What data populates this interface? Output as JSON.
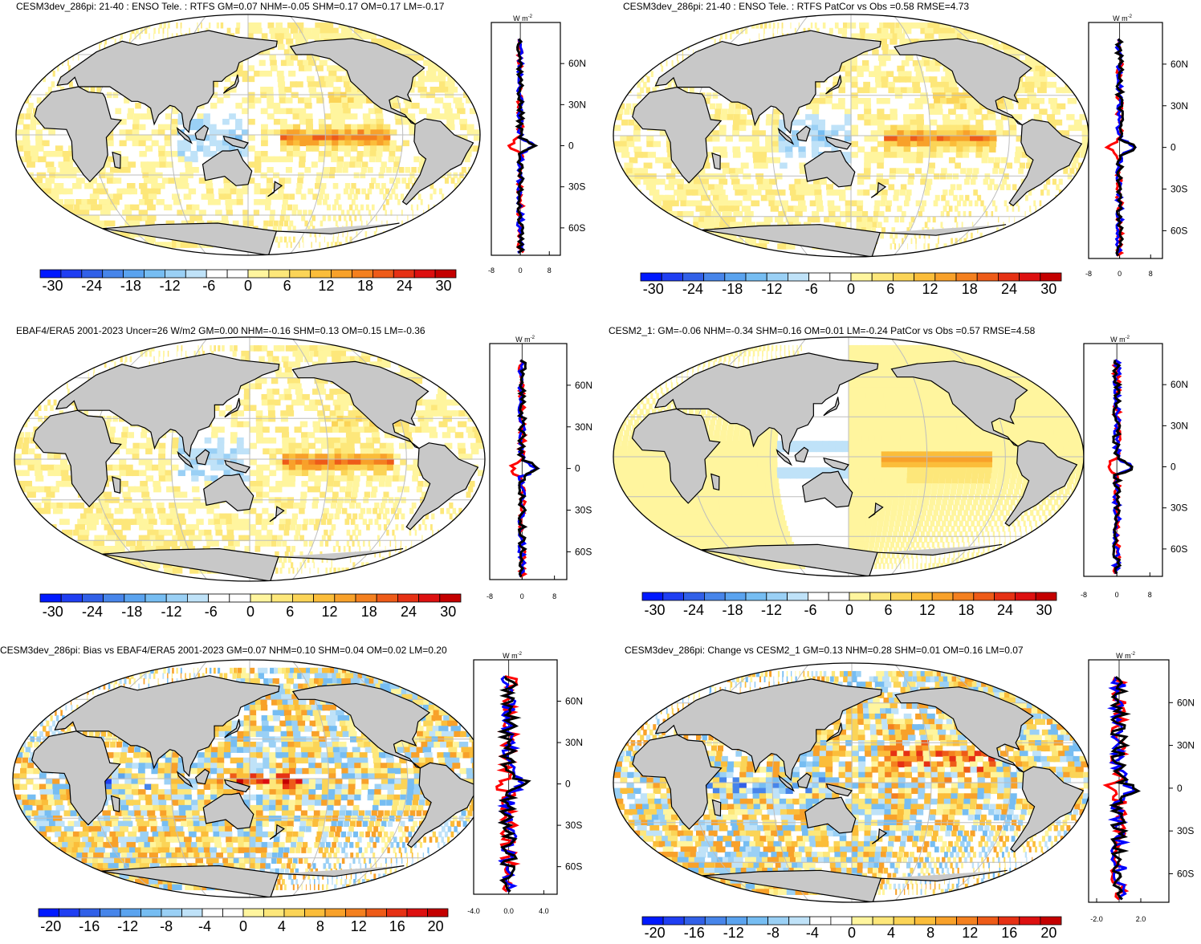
{
  "units": "W m",
  "units_exp": "-2",
  "lat_labels": [
    "60N",
    "30N",
    "0",
    "30S",
    "60S"
  ],
  "lat_values": [
    60,
    30,
    0,
    -30,
    -60
  ],
  "colors": {
    "land": "#c8c8c8",
    "grid": "#bdbdbd",
    "model_line": "#0000ff",
    "obs_line": "#ff0000",
    "ref_line": "#000000",
    "palette": [
      "#0019ff",
      "#1f3ef2",
      "#3160e8",
      "#4785ea",
      "#5aa3ef",
      "#76bdf2",
      "#9ad0f5",
      "#bfe2f8",
      "#ffffff",
      "#ffffff",
      "#fff59e",
      "#fde77a",
      "#fbd457",
      "#fbbd3a",
      "#f8a12a",
      "#f4801f",
      "#ee5b18",
      "#e63114",
      "#dd1010",
      "#c40000"
    ]
  },
  "panels": [
    {
      "title": "CESM3dev_286pi: 21-40 : ENSO Tele. : RTFS GM=0.07 NHM=-0.05 SHM=0.17 OM=0.17 LM=-0.17",
      "colorbar_labels": [
        "-30",
        "-24",
        "-18",
        "-12",
        "-6",
        "0",
        "6",
        "12",
        "18",
        "24",
        "30"
      ],
      "profile_ticks": [
        "-8",
        "0",
        "8"
      ]
    },
    {
      "title": "CESM3dev_286pi: 21-40 : ENSO Tele. : RTFS PatCor vs Obs =0.58 RMSE=4.73",
      "colorbar_labels": [
        "-30",
        "-24",
        "-18",
        "-12",
        "-6",
        "0",
        "6",
        "12",
        "18",
        "24",
        "30"
      ],
      "profile_ticks": [
        "-8",
        "0",
        "8"
      ]
    },
    {
      "title": "EBAF4/ERA5 2001-2023 Uncer=26 W/m2 GM=0.00 NHM=-0.16 SHM=0.13 OM=0.15 LM=-0.36",
      "colorbar_labels": [
        "-30",
        "-24",
        "-18",
        "-12",
        "-6",
        "0",
        "6",
        "12",
        "18",
        "24",
        "30"
      ],
      "profile_ticks": [
        "-8",
        "0",
        "8"
      ]
    },
    {
      "title": "CESM2_1: GM=-0.06 NHM=-0.34 SHM=0.16 OM=0.01 LM=-0.24 PatCor vs Obs =0.57 RMSE=4.58",
      "colorbar_labels": [
        "-30",
        "-24",
        "-18",
        "-12",
        "-6",
        "0",
        "6",
        "12",
        "18",
        "24",
        "30"
      ],
      "profile_ticks": [
        "-8",
        "0",
        "8"
      ]
    },
    {
      "title": "CESM3dev_286pi: Bias vs EBAF4/ERA5 2001-2023 GM=0.07 NHM=0.10 SHM=0.04 OM=0.02 LM=0.20",
      "colorbar_labels": [
        "-20",
        "-16",
        "-12",
        "-8",
        "-4",
        "0",
        "4",
        "8",
        "12",
        "16",
        "20"
      ],
      "profile_ticks": [
        "-4.0",
        "0.0",
        "4.0"
      ]
    },
    {
      "title": "CESM3dev_286pi: Change vs CESM2_1 GM=0.13 NHM=0.28 SHM=0.01 OM=0.16 LM=0.07",
      "colorbar_labels": [
        "-20",
        "-16",
        "-12",
        "-8",
        "-4",
        "0",
        "4",
        "8",
        "12",
        "16",
        "20"
      ],
      "profile_ticks": [
        "-2.0",
        "2.0"
      ]
    }
  ]
}
